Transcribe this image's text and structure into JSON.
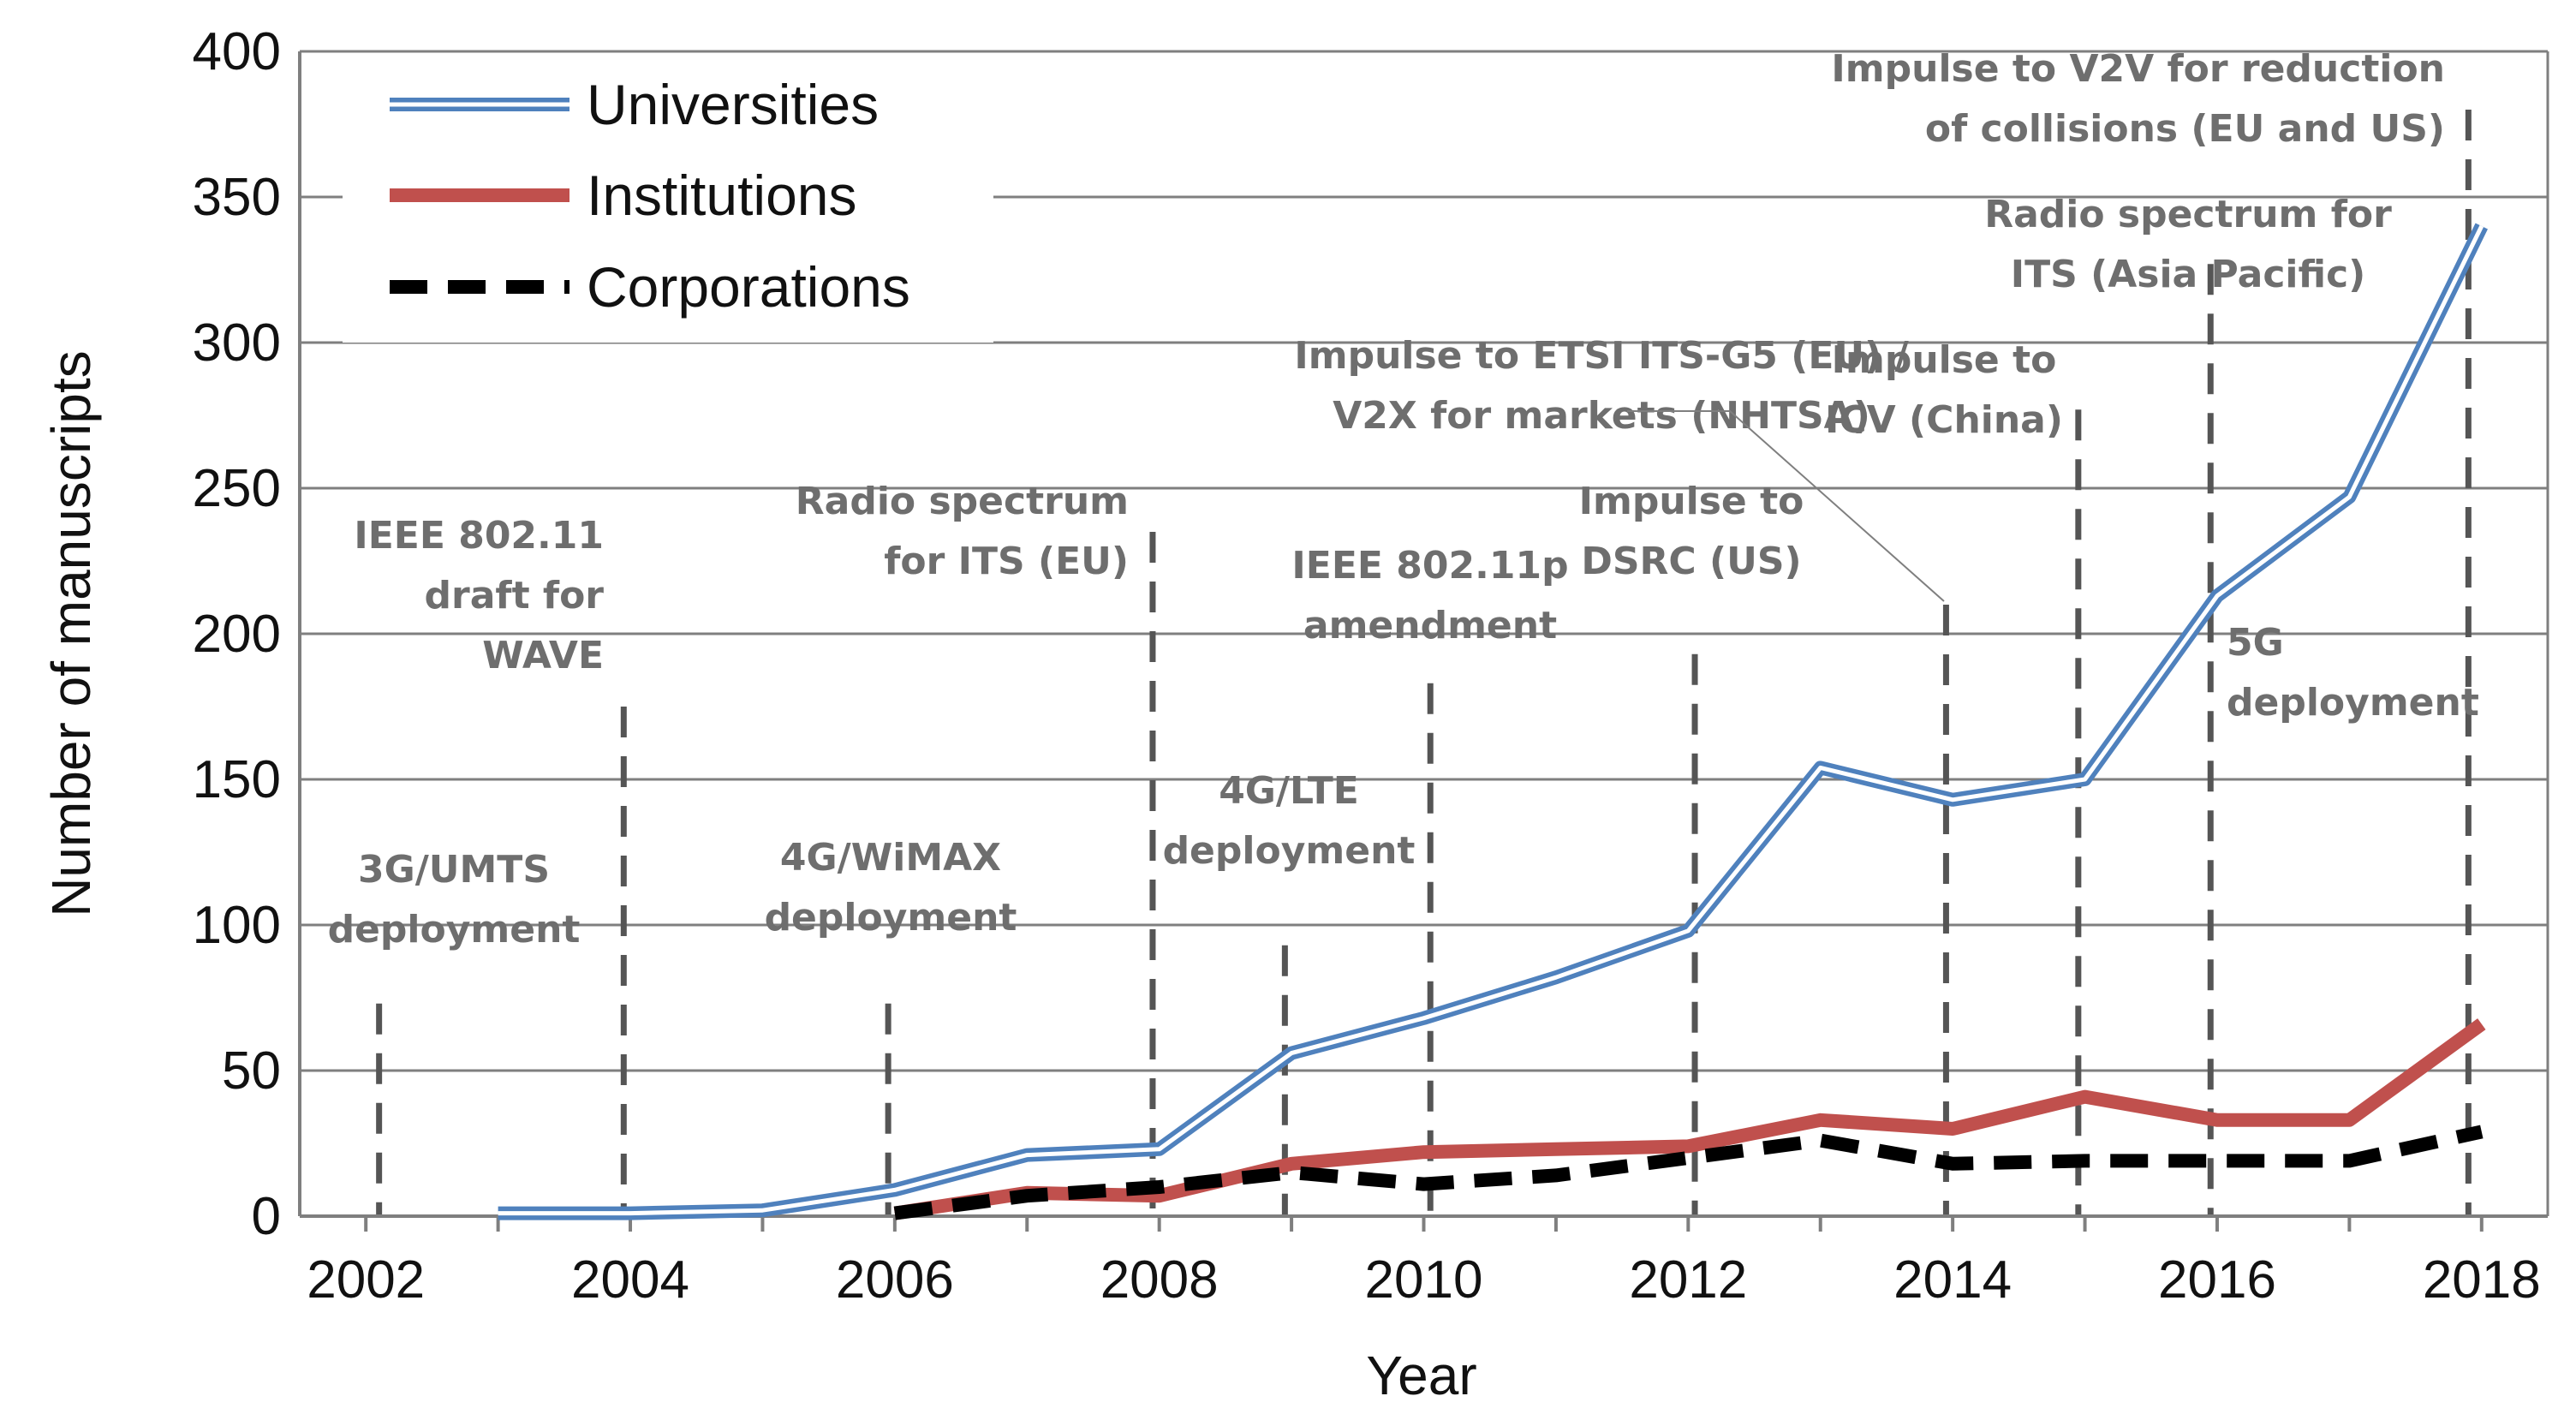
{
  "chart_data": {
    "type": "line",
    "title": "",
    "xlabel": "Year",
    "ylabel": "Number of manuscripts",
    "xlim": [
      2001.5,
      2018.5
    ],
    "ylim": [
      0,
      400
    ],
    "xticks": [
      2002,
      2004,
      2006,
      2008,
      2010,
      2012,
      2014,
      2016,
      2018
    ],
    "yticks": [
      0,
      50,
      100,
      150,
      200,
      250,
      300,
      350,
      400
    ],
    "grid": "horizontal",
    "legend_position": "top-left",
    "series": [
      {
        "name": "Universities",
        "color": "#4f81bd",
        "style": "double",
        "x": [
          2003,
          2004,
          2005,
          2006,
          2007,
          2008,
          2009,
          2010,
          2011,
          2012,
          2013,
          2014,
          2015,
          2016,
          2017,
          2018
        ],
        "values": [
          1,
          1,
          2,
          9,
          21,
          23,
          56,
          68,
          82,
          98,
          154,
          143,
          150,
          213,
          247,
          340
        ]
      },
      {
        "name": "Institutions",
        "color": "#c0504d",
        "style": "solid",
        "x": [
          2006,
          2007,
          2008,
          2009,
          2010,
          2011,
          2012,
          2013,
          2014,
          2015,
          2016,
          2017,
          2018
        ],
        "values": [
          1,
          8,
          7,
          18,
          22,
          23,
          24,
          33,
          30,
          41,
          33,
          33,
          66
        ]
      },
      {
        "name": "Corporations",
        "color": "#000000",
        "style": "dashed",
        "x": [
          2006,
          2007,
          2008,
          2009,
          2010,
          2011,
          2012,
          2013,
          2014,
          2015,
          2016,
          2017,
          2018
        ],
        "values": [
          1,
          7,
          10,
          15,
          11,
          14,
          20,
          26,
          18,
          19,
          19,
          19,
          29
        ]
      }
    ],
    "event_lines": [
      {
        "x": 2002.1,
        "y_top": 73,
        "label_lines": [
          "3G/UMTS",
          "deployment"
        ]
      },
      {
        "x": 2003.95,
        "y_top": 175,
        "label_lines": [
          "IEEE 802.11",
          "draft for",
          "WAVE"
        ]
      },
      {
        "x": 2005.95,
        "y_top": 73,
        "label_lines": [
          "4G/WiMAX",
          "deployment"
        ]
      },
      {
        "x": 2007.95,
        "y_top": 235,
        "label_lines": [
          "Radio spectrum",
          "for ITS (EU)"
        ]
      },
      {
        "x": 2008.95,
        "y_top": 93,
        "label_lines": [
          "4G/LTE",
          "deployment"
        ]
      },
      {
        "x": 2010.05,
        "y_top": 183,
        "label_lines": [
          "IEEE 802.11p",
          "amendment"
        ]
      },
      {
        "x": 2012.05,
        "y_top": 193,
        "label_lines": [
          "Impulse to",
          "DSRC (US)"
        ]
      },
      {
        "x": 2013.95,
        "y_top": 210,
        "label_lines": [
          "Impulse to ETSI ITS-G5 (EU) /",
          "V2X for markets (NHTSA)"
        ]
      },
      {
        "x": 2014.95,
        "y_top": 277,
        "label_lines": [
          "Impulse to",
          "ICV (China)"
        ]
      },
      {
        "x": 2015.95,
        "y_top": 327,
        "label_lines": [
          "Radio spectrum for",
          "ITS  (Asia Pacific)"
        ]
      },
      {
        "x": 2015.95,
        "y_top": 0,
        "label_lines": [
          "5G",
          "deployment"
        ]
      },
      {
        "x": 2017.9,
        "y_top": 380,
        "label_lines": [
          "Impulse to V2V for reduction",
          "of collisions (EU and US)"
        ]
      }
    ]
  }
}
